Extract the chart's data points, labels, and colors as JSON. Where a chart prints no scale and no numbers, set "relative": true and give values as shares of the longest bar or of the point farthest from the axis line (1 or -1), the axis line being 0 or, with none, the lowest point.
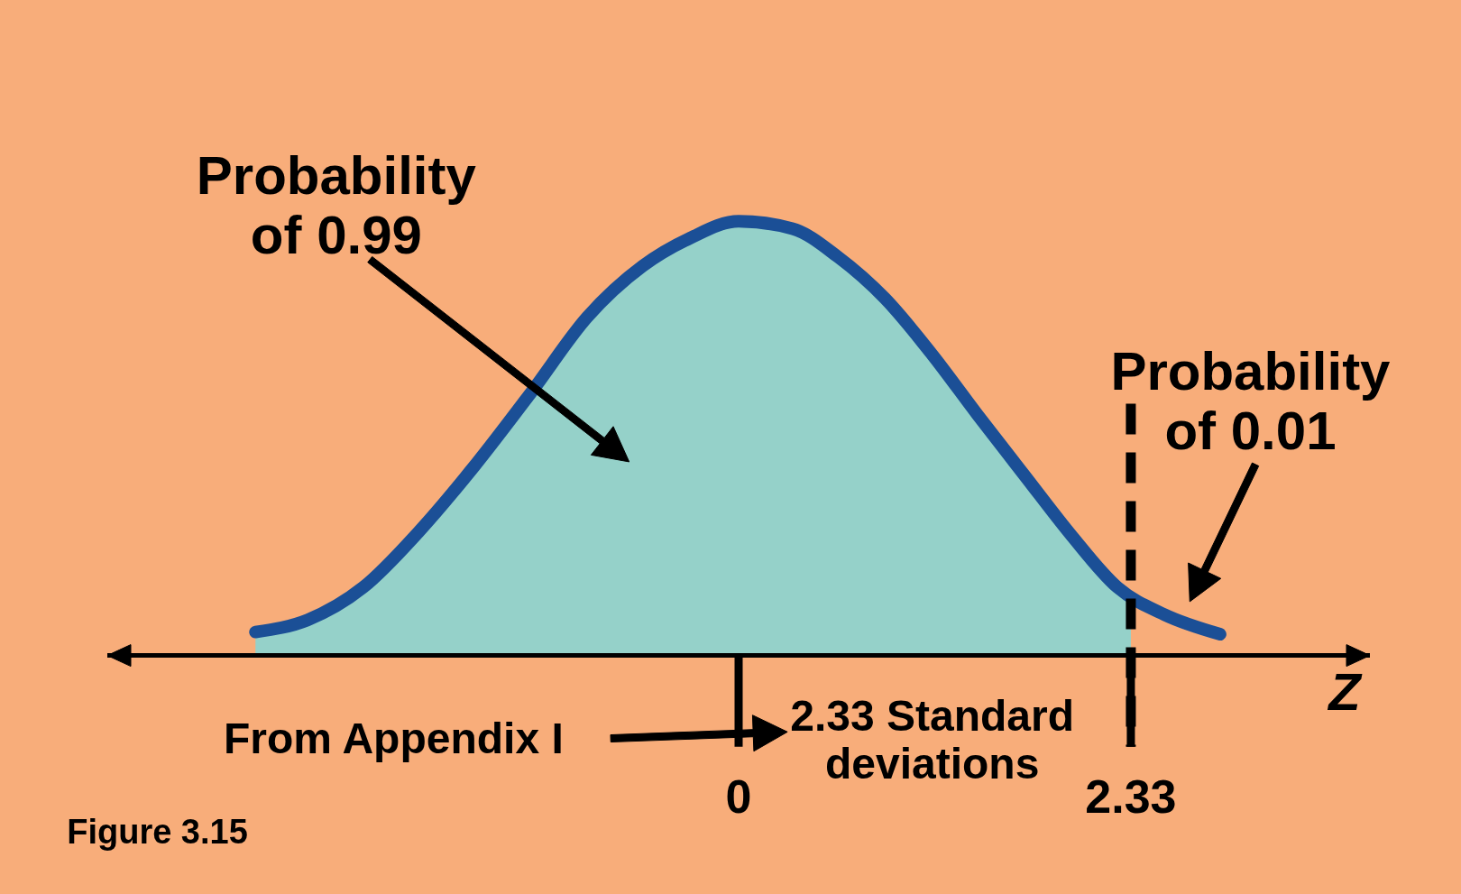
{
  "chart_data": {
    "type": "area",
    "relative": true,
    "xlabel": "Z",
    "xlim": [
      -3.75,
      3.75
    ],
    "xticks": [
      0,
      2.33
    ],
    "series": [
      {
        "color": "#95d1c9",
        "x": [
          -2.87,
          -2.56,
          -2.23,
          -1.9,
          -1.57,
          -1.23,
          -0.9,
          -0.57,
          -0.29,
          0,
          0.32,
          0.59,
          0.87,
          1.15,
          1.42,
          1.7,
          1.98,
          2.25,
          2.33
        ],
        "values": [
          0.054,
          0.082,
          0.157,
          0.285,
          0.436,
          0.607,
          0.779,
          0.897,
          0.961,
          1,
          0.983,
          0.918,
          0.822,
          0.693,
          0.554,
          0.414,
          0.275,
          0.157,
          0.14
        ]
      },
      {
        "type": "line",
        "color": "#1b4f96",
        "x": [
          -2.87,
          -2.56,
          -2.23,
          -1.9,
          -1.57,
          -1.23,
          -0.9,
          -0.57,
          -0.29,
          0,
          0.32,
          0.59,
          0.87,
          1.15,
          1.42,
          1.7,
          1.98,
          2.25,
          2.53,
          2.86
        ],
        "values": [
          0.054,
          0.082,
          0.157,
          0.285,
          0.436,
          0.607,
          0.779,
          0.897,
          0.961,
          1,
          0.983,
          0.918,
          0.822,
          0.693,
          0.554,
          0.414,
          0.275,
          0.157,
          0.094,
          0.049
        ]
      }
    ],
    "ref_lines": [
      {
        "axis": "x",
        "value": 2.33,
        "line_style": "dashed",
        "color": "#000000"
      }
    ],
    "annotations": [
      "Probability of 0.99",
      "Probability of 0.01",
      "From Appendix I",
      "2.33 Standard deviations",
      "Figure 3.15"
    ]
  }
}
